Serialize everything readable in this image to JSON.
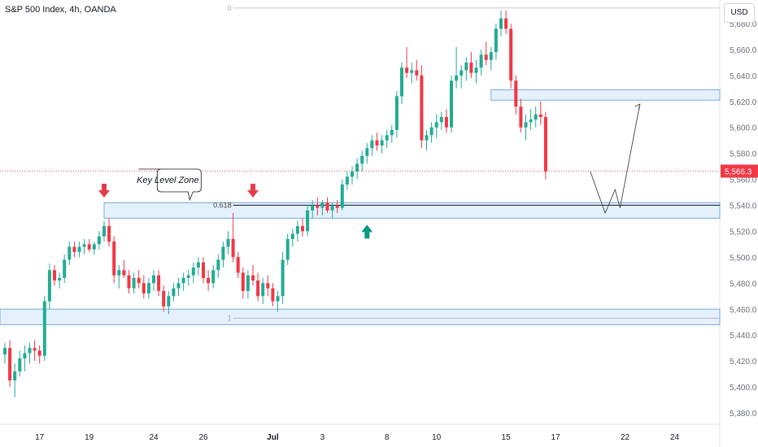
{
  "header": {
    "title": "S&P 500 Index, 4h, OANDA",
    "currency": "USD"
  },
  "chart_data": {
    "type": "candlestick",
    "symbol": "S&P 500 Index",
    "interval": "4h",
    "source": "OANDA",
    "y_range": [
      5364,
      5698
    ],
    "y_ticks": [
      5380,
      5400,
      5420,
      5440,
      5460,
      5480,
      5500,
      5520,
      5540,
      5560,
      5580,
      5600,
      5620,
      5640,
      5660,
      5680
    ],
    "y_tick_labels": [
      "5,380.0",
      "5,400.0",
      "5,420.0",
      "5,440.0",
      "5,460.0",
      "5,480.0",
      "5,500.0",
      "5,520.0",
      "5,540.0",
      "5,560.0",
      "5,580.0",
      "5,600.0",
      "5,620.0",
      "5,640.0",
      "5,660.0",
      "5,680.0"
    ],
    "x_labels": [
      {
        "label": "17",
        "bar": 7
      },
      {
        "label": "19",
        "bar": 17
      },
      {
        "label": "24",
        "bar": 30
      },
      {
        "label": "26",
        "bar": 40
      },
      {
        "label": "Jul",
        "bar": 54
      },
      {
        "label": "3",
        "bar": 64
      },
      {
        "label": "8",
        "bar": 77
      },
      {
        "label": "10",
        "bar": 87
      },
      {
        "label": "15",
        "bar": 101
      },
      {
        "label": "17",
        "bar": 111
      },
      {
        "label": "22",
        "bar": 125
      },
      {
        "label": "24",
        "bar": 135
      }
    ],
    "last_price": {
      "value": 5566.3,
      "label": "5,566.3"
    },
    "candles": [
      [
        5425,
        5434,
        5418,
        5430
      ],
      [
        5430,
        5436,
        5400,
        5405
      ],
      [
        5405,
        5418,
        5392,
        5412
      ],
      [
        5412,
        5428,
        5408,
        5422
      ],
      [
        5422,
        5432,
        5412,
        5426
      ],
      [
        5426,
        5434,
        5418,
        5430
      ],
      [
        5430,
        5436,
        5420,
        5428
      ],
      [
        5428,
        5432,
        5418,
        5424
      ],
      [
        5424,
        5470,
        5420,
        5466
      ],
      [
        5466,
        5495,
        5460,
        5490
      ],
      [
        5490,
        5494,
        5478,
        5482
      ],
      [
        5482,
        5488,
        5476,
        5484
      ],
      [
        5484,
        5502,
        5480,
        5498
      ],
      [
        5498,
        5512,
        5494,
        5508
      ],
      [
        5508,
        5512,
        5500,
        5504
      ],
      [
        5504,
        5512,
        5500,
        5508
      ],
      [
        5508,
        5514,
        5502,
        5510
      ],
      [
        5510,
        5514,
        5504,
        5506
      ],
      [
        5506,
        5512,
        5502,
        5510
      ],
      [
        5510,
        5520,
        5506,
        5516
      ],
      [
        5516,
        5528,
        5512,
        5524
      ],
      [
        5524,
        5530,
        5508,
        5512
      ],
      [
        5512,
        5516,
        5480,
        5486
      ],
      [
        5486,
        5494,
        5476,
        5490
      ],
      [
        5490,
        5498,
        5484,
        5486
      ],
      [
        5486,
        5490,
        5472,
        5476
      ],
      [
        5476,
        5488,
        5472,
        5484
      ],
      [
        5484,
        5490,
        5476,
        5480
      ],
      [
        5480,
        5486,
        5468,
        5472
      ],
      [
        5472,
        5484,
        5468,
        5480
      ],
      [
        5480,
        5490,
        5474,
        5486
      ],
      [
        5486,
        5490,
        5470,
        5474
      ],
      [
        5474,
        5478,
        5458,
        5462
      ],
      [
        5462,
        5474,
        5456,
        5470
      ],
      [
        5470,
        5480,
        5466,
        5476
      ],
      [
        5476,
        5484,
        5470,
        5480
      ],
      [
        5480,
        5488,
        5474,
        5484
      ],
      [
        5484,
        5490,
        5478,
        5486
      ],
      [
        5486,
        5496,
        5480,
        5492
      ],
      [
        5492,
        5500,
        5486,
        5496
      ],
      [
        5496,
        5500,
        5480,
        5484
      ],
      [
        5484,
        5490,
        5474,
        5480
      ],
      [
        5480,
        5494,
        5476,
        5490
      ],
      [
        5490,
        5502,
        5484,
        5498
      ],
      [
        5498,
        5512,
        5492,
        5508
      ],
      [
        5508,
        5520,
        5502,
        5514
      ],
      [
        5514,
        5534,
        5496,
        5500
      ],
      [
        5500,
        5504,
        5484,
        5488
      ],
      [
        5488,
        5492,
        5468,
        5474
      ],
      [
        5474,
        5490,
        5468,
        5486
      ],
      [
        5486,
        5494,
        5478,
        5482
      ],
      [
        5482,
        5488,
        5466,
        5470
      ],
      [
        5470,
        5484,
        5464,
        5480
      ],
      [
        5480,
        5486,
        5470,
        5476
      ],
      [
        5476,
        5480,
        5462,
        5466
      ],
      [
        5466,
        5474,
        5458,
        5470
      ],
      [
        5470,
        5504,
        5464,
        5498
      ],
      [
        5498,
        5518,
        5494,
        5514
      ],
      [
        5514,
        5522,
        5508,
        5518
      ],
      [
        5518,
        5528,
        5512,
        5524
      ],
      [
        5524,
        5530,
        5516,
        5520
      ],
      [
        5520,
        5540,
        5516,
        5536
      ],
      [
        5536,
        5544,
        5530,
        5540
      ],
      [
        5540,
        5546,
        5532,
        5538
      ],
      [
        5538,
        5544,
        5532,
        5542
      ],
      [
        5542,
        5546,
        5534,
        5536
      ],
      [
        5536,
        5542,
        5530,
        5540
      ],
      [
        5540,
        5544,
        5534,
        5538
      ],
      [
        5538,
        5560,
        5536,
        5556
      ],
      [
        5556,
        5566,
        5552,
        5562
      ],
      [
        5562,
        5570,
        5556,
        5566
      ],
      [
        5566,
        5576,
        5560,
        5572
      ],
      [
        5572,
        5582,
        5566,
        5578
      ],
      [
        5578,
        5588,
        5572,
        5584
      ],
      [
        5584,
        5594,
        5578,
        5590
      ],
      [
        5590,
        5596,
        5582,
        5586
      ],
      [
        5586,
        5594,
        5580,
        5590
      ],
      [
        5590,
        5598,
        5584,
        5594
      ],
      [
        5594,
        5602,
        5588,
        5598
      ],
      [
        5598,
        5628,
        5592,
        5624
      ],
      [
        5624,
        5650,
        5618,
        5646
      ],
      [
        5646,
        5662,
        5638,
        5642
      ],
      [
        5642,
        5650,
        5634,
        5644
      ],
      [
        5644,
        5652,
        5636,
        5640
      ],
      [
        5640,
        5648,
        5584,
        5590
      ],
      [
        5590,
        5598,
        5582,
        5594
      ],
      [
        5594,
        5604,
        5588,
        5600
      ],
      [
        5600,
        5610,
        5592,
        5604
      ],
      [
        5604,
        5612,
        5598,
        5608
      ],
      [
        5608,
        5614,
        5596,
        5600
      ],
      [
        5600,
        5640,
        5596,
        5636
      ],
      [
        5636,
        5662,
        5630,
        5640
      ],
      [
        5640,
        5648,
        5630,
        5644
      ],
      [
        5644,
        5654,
        5636,
        5650
      ],
      [
        5650,
        5658,
        5638,
        5642
      ],
      [
        5642,
        5652,
        5634,
        5646
      ],
      [
        5646,
        5660,
        5640,
        5656
      ],
      [
        5656,
        5666,
        5648,
        5652
      ],
      [
        5652,
        5662,
        5644,
        5658
      ],
      [
        5658,
        5680,
        5652,
        5676
      ],
      [
        5676,
        5690,
        5670,
        5684
      ],
      [
        5684,
        5690,
        5672,
        5676
      ],
      [
        5676,
        5680,
        5630,
        5636
      ],
      [
        5636,
        5640,
        5610,
        5616
      ],
      [
        5616,
        5622,
        5596,
        5600
      ],
      [
        5600,
        5610,
        5590,
        5604
      ],
      [
        5604,
        5614,
        5598,
        5606
      ],
      [
        5606,
        5616,
        5600,
        5610
      ],
      [
        5610,
        5620,
        5602,
        5608
      ],
      [
        5608,
        5612,
        5560,
        5566
      ]
    ],
    "zones": [
      {
        "name": "upper-resistance-zone",
        "top": 5629,
        "bottom": 5621,
        "bar_start": 98,
        "bar_end": 145
      },
      {
        "name": "key-level-zone",
        "top": 5542,
        "bottom": 5530,
        "bar_start": 20,
        "bar_end": 145
      },
      {
        "name": "lower-support-zone",
        "top": 5460,
        "bottom": 5448,
        "bar_start": -1,
        "bar_end": 145
      }
    ],
    "fib_levels": [
      {
        "label": "0",
        "value": 5692,
        "bar_start": 46,
        "bar_end": 145
      },
      {
        "label": "0.618",
        "value": 5540,
        "bar_start": 46,
        "bar_end": 145
      },
      {
        "label": "1",
        "value": 5453,
        "bar_start": 46,
        "bar_end": 145
      }
    ],
    "annotations": [
      {
        "type": "callout",
        "text": "Key Level Zone",
        "bar": 33,
        "value": 5540
      },
      {
        "type": "arrow-down",
        "color": "#e23d4a",
        "bar": 20,
        "value": 5544
      },
      {
        "type": "arrow-down",
        "color": "#e23d4a",
        "bar": 50,
        "value": 5544
      },
      {
        "type": "arrow-up",
        "color": "#089981",
        "bar": 73,
        "value": 5525
      }
    ],
    "projection_path": [
      [
        118,
        5566
      ],
      [
        121,
        5534
      ],
      [
        123,
        5552
      ],
      [
        124,
        5538
      ],
      [
        128,
        5618
      ]
    ],
    "colors": {
      "up": "#22ab94",
      "down": "#f23645",
      "zone_fill": "#ddecfb",
      "zone_border": "#5b9bd5"
    }
  }
}
